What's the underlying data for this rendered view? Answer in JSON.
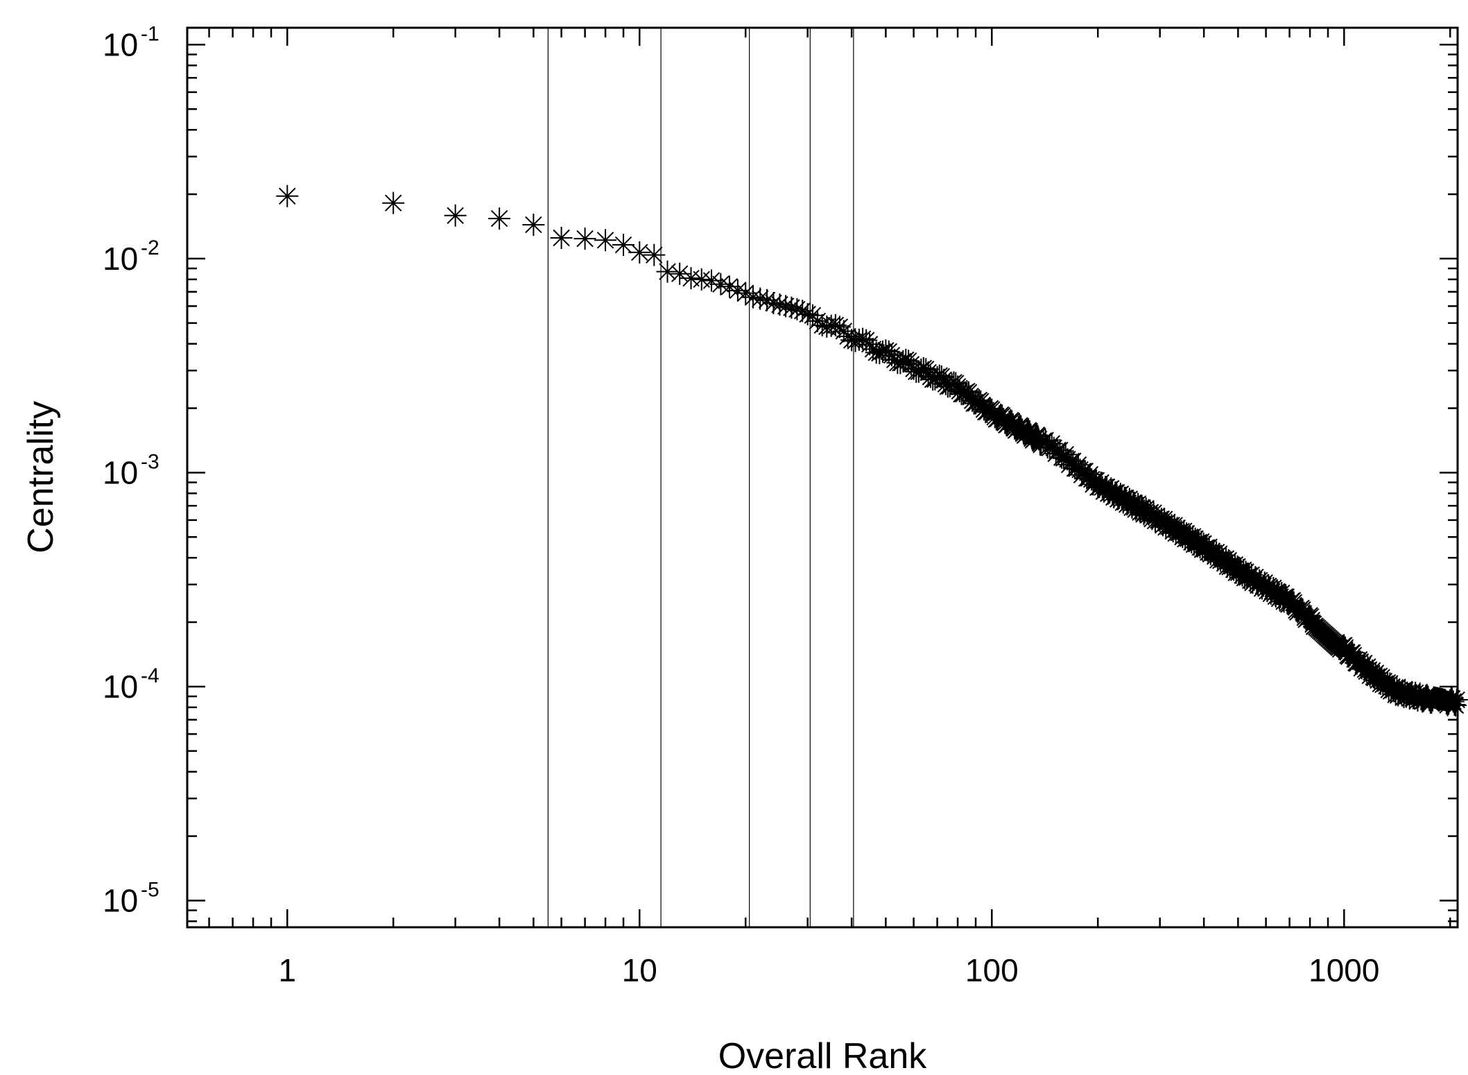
{
  "chart_data": {
    "type": "scatter",
    "title": "",
    "xlabel": "Overall Rank",
    "ylabel": "Centrality",
    "x_scale": "log",
    "y_scale": "log",
    "xlim": [
      0.52,
      2100
    ],
    "ylim": [
      7.5e-06,
      0.12
    ],
    "grid": false,
    "marker": "asterisk",
    "marker_color": "#000000",
    "x_ticks": [
      {
        "value": 1,
        "label": "1"
      },
      {
        "value": 10,
        "label": "10"
      },
      {
        "value": 100,
        "label": "100"
      },
      {
        "value": 1000,
        "label": "1000"
      }
    ],
    "y_ticks": [
      {
        "value": 0.1,
        "base": "10",
        "exp": "-1"
      },
      {
        "value": 0.01,
        "base": "10",
        "exp": "-2"
      },
      {
        "value": 0.001,
        "base": "10",
        "exp": "-3"
      },
      {
        "value": 0.0001,
        "base": "10",
        "exp": "-4"
      },
      {
        "value": 1e-05,
        "base": "10",
        "exp": "-5"
      }
    ],
    "vertical_lines_x": [
      5.5,
      11.5,
      20.5,
      30.5,
      40.5
    ],
    "series": [
      {
        "x": [
          1,
          2,
          3,
          4,
          5,
          6,
          7,
          8,
          9,
          10,
          11,
          12,
          13,
          14,
          15,
          16,
          17,
          18,
          19,
          20,
          21,
          22,
          23,
          24,
          25,
          26,
          27,
          28,
          29,
          30
        ],
        "y": [
          0.0196,
          0.0182,
          0.0159,
          0.0154,
          0.0144,
          0.0125,
          0.0124,
          0.0122,
          0.0116,
          0.0107,
          0.0104,
          0.0087,
          0.0085,
          0.0081,
          0.008,
          0.0079,
          0.0076,
          0.0074,
          0.0071,
          0.0069,
          0.0066,
          0.0065,
          0.0064,
          0.0062,
          0.0061,
          0.006,
          0.0059,
          0.0058,
          0.0057,
          0.0055
        ]
      }
    ],
    "tail_curve_anchor_points": [
      {
        "x": 30,
        "y": 0.0055
      },
      {
        "x": 50,
        "y": 0.0036
      },
      {
        "x": 80,
        "y": 0.0025
      },
      {
        "x": 100,
        "y": 0.0019
      },
      {
        "x": 150,
        "y": 0.0013
      },
      {
        "x": 200,
        "y": 0.00088
      },
      {
        "x": 300,
        "y": 0.0006
      },
      {
        "x": 400,
        "y": 0.00045
      },
      {
        "x": 500,
        "y": 0.00035
      },
      {
        "x": 700,
        "y": 0.00025
      },
      {
        "x": 1000,
        "y": 0.00015
      },
      {
        "x": 1200,
        "y": 0.000115
      },
      {
        "x": 1400,
        "y": 9.5e-05
      },
      {
        "x": 1700,
        "y": 8.8e-05
      },
      {
        "x": 2000,
        "y": 8.5e-05
      }
    ]
  }
}
